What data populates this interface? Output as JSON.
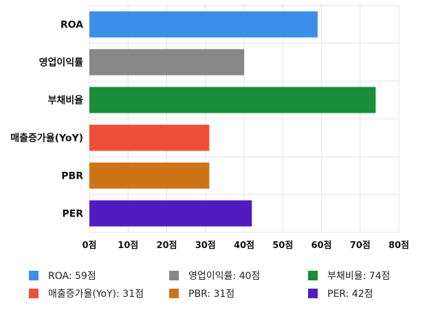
{
  "chart_data": {
    "type": "bar",
    "orientation": "horizontal",
    "categories": [
      "ROA",
      "영업이익률",
      "부채비율",
      "매출증가율(YoY)",
      "PBR",
      "PER"
    ],
    "values": [
      59,
      40,
      74,
      31,
      31,
      42
    ],
    "colors": [
      "#3b8fe8",
      "#888888",
      "#178e37",
      "#ee4e38",
      "#cd7417",
      "#521bc1"
    ],
    "tick_values": [
      0,
      10,
      20,
      30,
      40,
      50,
      60,
      70,
      80
    ],
    "tick_labels": [
      "0점",
      "10점",
      "20점",
      "30점",
      "40점",
      "50점",
      "60점",
      "70점",
      "80점"
    ],
    "xlim": [
      0,
      80
    ],
    "grid": true,
    "legend_position": "bottom",
    "legend": [
      "ROA: 59점",
      "영업이익률: 40점",
      "부채비율: 74점",
      "매출증가율(YoY): 31점",
      "PBR: 31점",
      "PER: 42점"
    ]
  }
}
